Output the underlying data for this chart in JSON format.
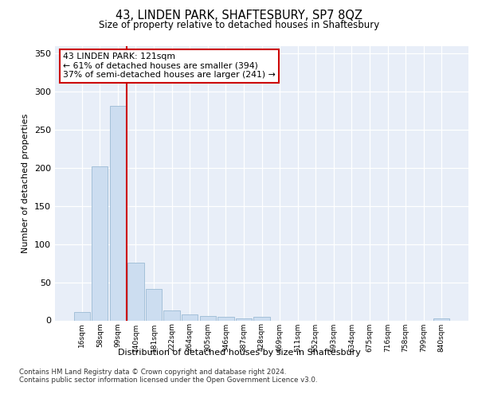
{
  "title1": "43, LINDEN PARK, SHAFTESBURY, SP7 8QZ",
  "title2": "Size of property relative to detached houses in Shaftesbury",
  "xlabel": "Distribution of detached houses by size in Shaftesbury",
  "ylabel": "Number of detached properties",
  "bin_labels": [
    "16sqm",
    "58sqm",
    "99sqm",
    "140sqm",
    "181sqm",
    "222sqm",
    "264sqm",
    "305sqm",
    "346sqm",
    "387sqm",
    "428sqm",
    "469sqm",
    "511sqm",
    "552sqm",
    "593sqm",
    "634sqm",
    "675sqm",
    "716sqm",
    "758sqm",
    "799sqm",
    "840sqm"
  ],
  "bar_values": [
    11,
    202,
    281,
    76,
    41,
    13,
    8,
    6,
    5,
    3,
    5,
    0,
    0,
    0,
    0,
    0,
    0,
    0,
    0,
    0,
    3
  ],
  "bar_color": "#ccddf0",
  "bar_edge_color": "#9bbad4",
  "vline_color": "#cc0000",
  "annotation_text": "43 LINDEN PARK: 121sqm\n← 61% of detached houses are smaller (394)\n37% of semi-detached houses are larger (241) →",
  "annotation_box_color": "#ffffff",
  "annotation_box_edge": "#cc0000",
  "ylim": [
    0,
    360
  ],
  "yticks": [
    0,
    50,
    100,
    150,
    200,
    250,
    300,
    350
  ],
  "footer1": "Contains HM Land Registry data © Crown copyright and database right 2024.",
  "footer2": "Contains public sector information licensed under the Open Government Licence v3.0.",
  "fig_bg_color": "#ffffff",
  "plot_bg_color": "#e8eef8"
}
